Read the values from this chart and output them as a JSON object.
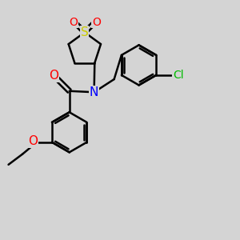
{
  "bg_color": "#d4d4d4",
  "bond_color": "#000000",
  "bond_width": 1.8,
  "colors": {
    "S": "#cccc00",
    "N": "#0000ff",
    "O": "#ff0000",
    "Cl": "#00bb00",
    "C": "#000000"
  },
  "font_size": 10
}
